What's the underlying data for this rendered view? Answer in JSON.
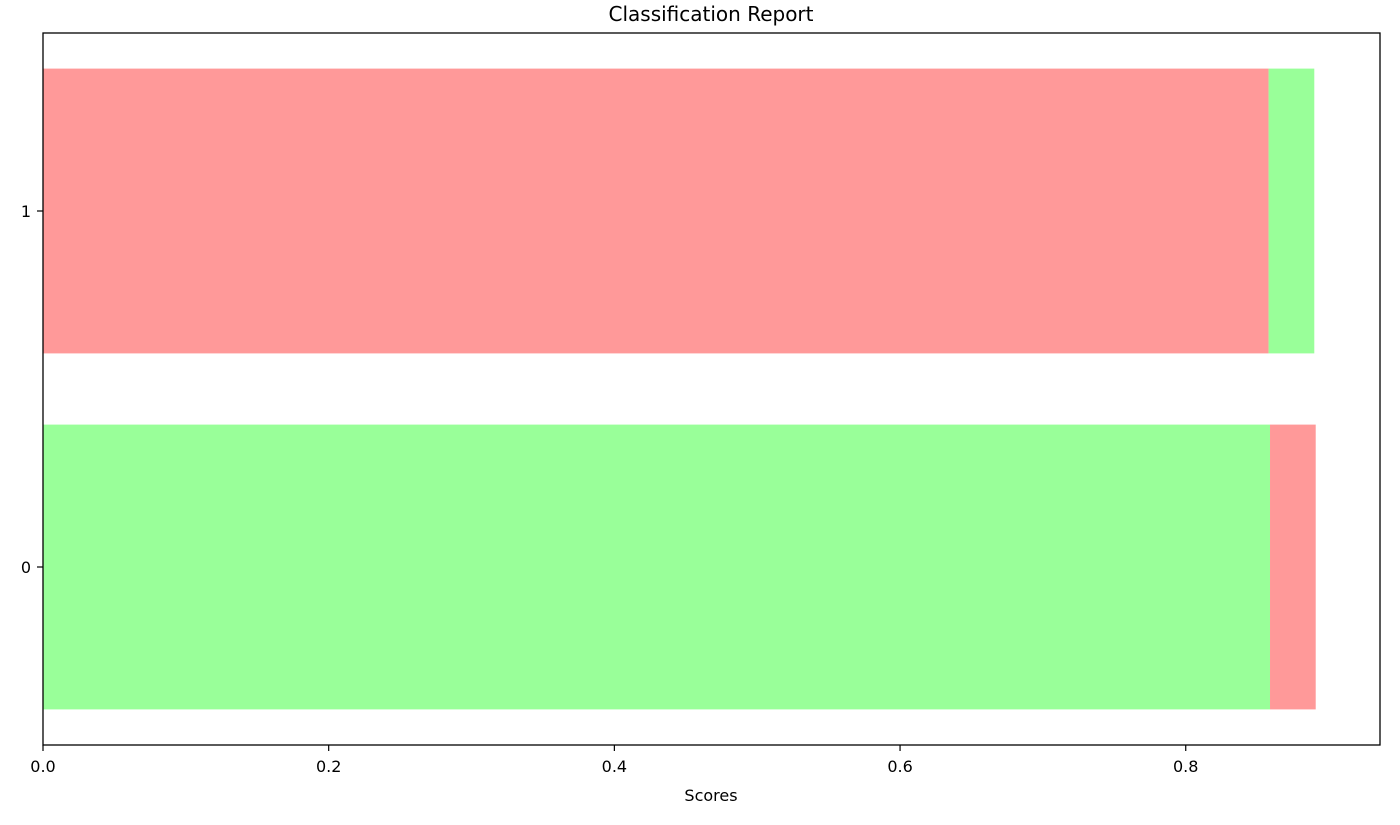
{
  "chart_data": {
    "type": "bar",
    "orientation": "horizontal",
    "stacked": true,
    "title": "Classification Report",
    "xlabel": "Scores",
    "ylabel": "",
    "categories": [
      "0",
      "1"
    ],
    "xlim": [
      0,
      0.936
    ],
    "xticks": [
      "0.0",
      "0.2",
      "0.4",
      "0.6",
      "0.8"
    ],
    "series": [
      {
        "values": [
          0.859,
          0.858
        ],
        "colors": [
          "#99ff99",
          "#ff9999"
        ]
      },
      {
        "values": [
          0.032,
          0.032
        ],
        "colors": [
          "#ff9999",
          "#99ff99"
        ]
      }
    ],
    "grid": false
  }
}
